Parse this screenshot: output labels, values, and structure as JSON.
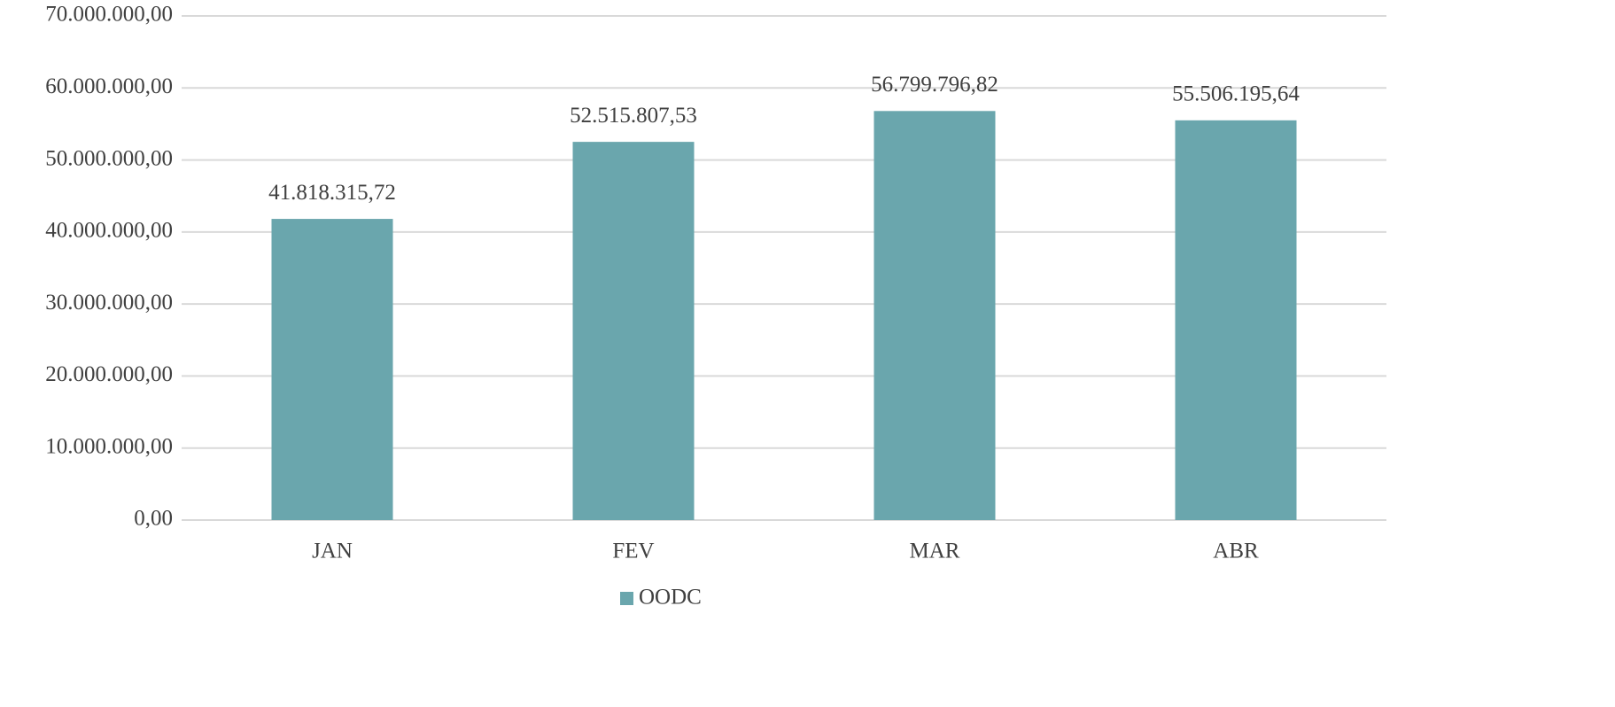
{
  "chart_data": {
    "type": "bar",
    "categories": [
      "JAN",
      "FEV",
      "MAR",
      "ABR"
    ],
    "series": [
      {
        "name": "OODC",
        "color": "#6aa6ad",
        "values": [
          41818315.72,
          52515807.53,
          56799796.82,
          55506195.64
        ],
        "value_labels": [
          "41.818.315,72",
          "52.515.807,53",
          "56.799.796,82",
          "55.506.195,64"
        ]
      }
    ],
    "ylim": [
      0,
      70000000
    ],
    "yticks": [
      {
        "value": 0,
        "label": "0,00"
      },
      {
        "value": 10000000,
        "label": "10.000.000,00"
      },
      {
        "value": 20000000,
        "label": "20.000.000,00"
      },
      {
        "value": 30000000,
        "label": "30.000.000,00"
      },
      {
        "value": 40000000,
        "label": "40.000.000,00"
      },
      {
        "value": 50000000,
        "label": "50.000.000,00"
      },
      {
        "value": 60000000,
        "label": "60.000.000,00"
      },
      {
        "value": 70000000,
        "label": "70.000.000,00"
      }
    ],
    "grid": true,
    "legend": "bottom"
  }
}
